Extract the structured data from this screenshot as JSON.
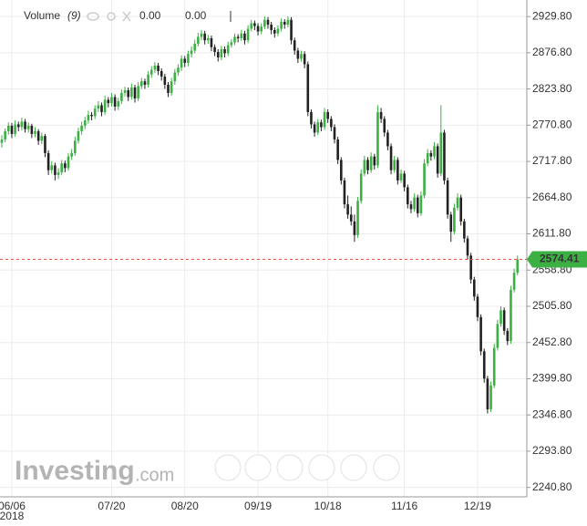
{
  "chart_data": {
    "type": "candlestick",
    "legend": {
      "label": "Volume",
      "param": "(9)",
      "values": [
        "0.00",
        "0.00"
      ],
      "colors": [
        "#e0524c",
        "#2f7fd6"
      ]
    },
    "watermark": [
      "Investing",
      ".com"
    ],
    "year_label": "2018",
    "up_color": "#3cb043",
    "down_color": "#222222",
    "grid": true,
    "ylim": [
      2227,
      2954
    ],
    "yticks": [
      {
        "value": 2240.8,
        "label": "2240.80"
      },
      {
        "value": 2293.8,
        "label": "2293.80"
      },
      {
        "value": 2346.8,
        "label": "2346.80"
      },
      {
        "value": 2399.8,
        "label": "2399.80"
      },
      {
        "value": 2452.8,
        "label": "2452.80"
      },
      {
        "value": 2505.8,
        "label": "2505.80"
      },
      {
        "value": 2558.8,
        "label": "2558.80"
      },
      {
        "value": 2611.8,
        "label": "2611.80"
      },
      {
        "value": 2664.8,
        "label": "2664.80"
      },
      {
        "value": 2717.8,
        "label": "2717.80"
      },
      {
        "value": 2770.8,
        "label": "2770.80"
      },
      {
        "value": 2823.8,
        "label": "2823.80"
      },
      {
        "value": 2876.8,
        "label": "2876.80"
      },
      {
        "value": 2929.8,
        "label": "2929.80"
      }
    ],
    "last_price": 2574.41,
    "last_price_color": "#3cb043",
    "categories": [
      null,
      null,
      null,
      "06/06",
      null,
      null,
      null,
      null,
      null,
      null,
      null,
      null,
      null,
      null,
      null,
      null,
      null,
      null,
      null,
      null,
      null,
      null,
      null,
      null,
      null,
      null,
      null,
      null,
      null,
      null,
      null,
      null,
      null,
      "07/20",
      null,
      null,
      null,
      null,
      null,
      null,
      null,
      null,
      null,
      null,
      null,
      null,
      null,
      null,
      null,
      null,
      null,
      null,
      null,
      null,
      null,
      "08/20",
      null,
      null,
      null,
      null,
      null,
      null,
      null,
      null,
      null,
      null,
      null,
      null,
      null,
      null,
      null,
      null,
      null,
      null,
      null,
      null,
      null,
      "09/19",
      null,
      null,
      null,
      null,
      null,
      null,
      null,
      null,
      null,
      null,
      null,
      null,
      null,
      null,
      null,
      null,
      null,
      null,
      null,
      null,
      "10/18",
      null,
      null,
      null,
      null,
      null,
      null,
      null,
      null,
      null,
      null,
      null,
      null,
      null,
      null,
      null,
      null,
      null,
      null,
      null,
      null,
      null,
      null,
      "11/16",
      null,
      null,
      null,
      null,
      null,
      null,
      null,
      null,
      null,
      null,
      null,
      null,
      null,
      null,
      null,
      null,
      null,
      null,
      null,
      null,
      null,
      "12/19",
      null,
      null,
      null,
      null,
      null,
      null,
      null,
      null,
      null,
      null,
      null,
      null
    ],
    "ohlc": [
      [
        2745,
        2756,
        2738,
        2750
      ],
      [
        2750,
        2766,
        2746,
        2762
      ],
      [
        2762,
        2775,
        2757,
        2770
      ],
      [
        2770,
        2774,
        2752,
        2758
      ],
      [
        2758,
        2778,
        2754,
        2772
      ],
      [
        2772,
        2776,
        2762,
        2768
      ],
      [
        2768,
        2782,
        2763,
        2776
      ],
      [
        2776,
        2780,
        2760,
        2765
      ],
      [
        2765,
        2775,
        2760,
        2770
      ],
      [
        2770,
        2773,
        2752,
        2758
      ],
      [
        2758,
        2768,
        2753,
        2762
      ],
      [
        2762,
        2765,
        2742,
        2748
      ],
      [
        2748,
        2760,
        2743,
        2755
      ],
      [
        2755,
        2758,
        2724,
        2730
      ],
      [
        2730,
        2734,
        2698,
        2705
      ],
      [
        2705,
        2718,
        2700,
        2712
      ],
      [
        2712,
        2716,
        2690,
        2698
      ],
      [
        2698,
        2708,
        2692,
        2702
      ],
      [
        2702,
        2720,
        2698,
        2715
      ],
      [
        2715,
        2719,
        2702,
        2708
      ],
      [
        2708,
        2730,
        2704,
        2725
      ],
      [
        2725,
        2736,
        2720,
        2730
      ],
      [
        2730,
        2754,
        2726,
        2748
      ],
      [
        2748,
        2767,
        2744,
        2762
      ],
      [
        2762,
        2776,
        2757,
        2770
      ],
      [
        2770,
        2783,
        2765,
        2778
      ],
      [
        2778,
        2792,
        2773,
        2786
      ],
      [
        2786,
        2790,
        2778,
        2784
      ],
      [
        2784,
        2800,
        2780,
        2795
      ],
      [
        2795,
        2806,
        2790,
        2800
      ],
      [
        2800,
        2804,
        2784,
        2790
      ],
      [
        2790,
        2814,
        2786,
        2808
      ],
      [
        2808,
        2812,
        2797,
        2803
      ],
      [
        2803,
        2818,
        2798,
        2812
      ],
      [
        2812,
        2816,
        2792,
        2798
      ],
      [
        2798,
        2811,
        2793,
        2806
      ],
      [
        2806,
        2823,
        2802,
        2818
      ],
      [
        2818,
        2827,
        2813,
        2822
      ],
      [
        2822,
        2826,
        2806,
        2812
      ],
      [
        2812,
        2832,
        2808,
        2826
      ],
      [
        2826,
        2830,
        2804,
        2810
      ],
      [
        2810,
        2834,
        2806,
        2828
      ],
      [
        2828,
        2840,
        2824,
        2835
      ],
      [
        2835,
        2839,
        2824,
        2830
      ],
      [
        2830,
        2850,
        2826,
        2845
      ],
      [
        2845,
        2857,
        2840,
        2852
      ],
      [
        2852,
        2863,
        2847,
        2858
      ],
      [
        2858,
        2862,
        2844,
        2850
      ],
      [
        2850,
        2854,
        2836,
        2842
      ],
      [
        2842,
        2846,
        2824,
        2830
      ],
      [
        2830,
        2834,
        2812,
        2818
      ],
      [
        2818,
        2840,
        2814,
        2835
      ],
      [
        2835,
        2853,
        2830,
        2848
      ],
      [
        2848,
        2860,
        2843,
        2855
      ],
      [
        2855,
        2873,
        2850,
        2868
      ],
      [
        2868,
        2872,
        2856,
        2862
      ],
      [
        2862,
        2880,
        2857,
        2875
      ],
      [
        2875,
        2886,
        2870,
        2880
      ],
      [
        2880,
        2896,
        2876,
        2890
      ],
      [
        2890,
        2906,
        2886,
        2900
      ],
      [
        2900,
        2910,
        2895,
        2905
      ],
      [
        2905,
        2909,
        2889,
        2895
      ],
      [
        2895,
        2903,
        2890,
        2898
      ],
      [
        2898,
        2902,
        2879,
        2885
      ],
      [
        2885,
        2889,
        2872,
        2878
      ],
      [
        2878,
        2882,
        2864,
        2870
      ],
      [
        2870,
        2887,
        2866,
        2882
      ],
      [
        2882,
        2886,
        2870,
        2876
      ],
      [
        2876,
        2893,
        2872,
        2888
      ],
      [
        2888,
        2897,
        2884,
        2892
      ],
      [
        2892,
        2905,
        2888,
        2900
      ],
      [
        2900,
        2904,
        2892,
        2898
      ],
      [
        2898,
        2910,
        2894,
        2905
      ],
      [
        2905,
        2909,
        2889,
        2895
      ],
      [
        2895,
        2917,
        2891,
        2912
      ],
      [
        2912,
        2925,
        2908,
        2920
      ],
      [
        2920,
        2924,
        2910,
        2916
      ],
      [
        2916,
        2920,
        2902,
        2908
      ],
      [
        2908,
        2920,
        2904,
        2915
      ],
      [
        2915,
        2930,
        2911,
        2925
      ],
      [
        2925,
        2929,
        2912,
        2918
      ],
      [
        2918,
        2922,
        2904,
        2910
      ],
      [
        2910,
        2914,
        2899,
        2905
      ],
      [
        2905,
        2917,
        2901,
        2912
      ],
      [
        2912,
        2927,
        2908,
        2922
      ],
      [
        2922,
        2926,
        2912,
        2918
      ],
      [
        2918,
        2930,
        2914,
        2925
      ],
      [
        2925,
        2929,
        2889,
        2895
      ],
      [
        2895,
        2899,
        2874,
        2880
      ],
      [
        2880,
        2884,
        2862,
        2868
      ],
      [
        2868,
        2880,
        2864,
        2875
      ],
      [
        2875,
        2879,
        2854,
        2860
      ],
      [
        2860,
        2864,
        2784,
        2790
      ],
      [
        2790,
        2794,
        2766,
        2772
      ],
      [
        2772,
        2776,
        2754,
        2760
      ],
      [
        2760,
        2780,
        2756,
        2775
      ],
      [
        2775,
        2779,
        2762,
        2768
      ],
      [
        2768,
        2796,
        2764,
        2790
      ],
      [
        2790,
        2794,
        2774,
        2780
      ],
      [
        2780,
        2784,
        2762,
        2768
      ],
      [
        2768,
        2772,
        2744,
        2750
      ],
      [
        2750,
        2754,
        2714,
        2720
      ],
      [
        2720,
        2724,
        2684,
        2690
      ],
      [
        2690,
        2694,
        2649,
        2655
      ],
      [
        2655,
        2668,
        2634,
        2640
      ],
      [
        2640,
        2652,
        2624,
        2630
      ],
      [
        2630,
        2640,
        2600,
        2610
      ],
      [
        2610,
        2666,
        2606,
        2660
      ],
      [
        2660,
        2706,
        2656,
        2700
      ],
      [
        2700,
        2726,
        2696,
        2720
      ],
      [
        2720,
        2724,
        2699,
        2705
      ],
      [
        2705,
        2731,
        2701,
        2725
      ],
      [
        2725,
        2729,
        2706,
        2712
      ],
      [
        2712,
        2800,
        2708,
        2790
      ],
      [
        2790,
        2796,
        2774,
        2780
      ],
      [
        2780,
        2784,
        2754,
        2760
      ],
      [
        2760,
        2764,
        2734,
        2740
      ],
      [
        2740,
        2744,
        2699,
        2705
      ],
      [
        2705,
        2726,
        2701,
        2720
      ],
      [
        2720,
        2724,
        2684,
        2690
      ],
      [
        2690,
        2706,
        2686,
        2700
      ],
      [
        2700,
        2704,
        2674,
        2680
      ],
      [
        2680,
        2684,
        2649,
        2655
      ],
      [
        2655,
        2660,
        2642,
        2648
      ],
      [
        2648,
        2671,
        2644,
        2665
      ],
      [
        2665,
        2669,
        2636,
        2642
      ],
      [
        2642,
        2674,
        2638,
        2668
      ],
      [
        2668,
        2721,
        2664,
        2715
      ],
      [
        2715,
        2736,
        2711,
        2730
      ],
      [
        2730,
        2734,
        2719,
        2725
      ],
      [
        2725,
        2746,
        2721,
        2740
      ],
      [
        2740,
        2744,
        2694,
        2700
      ],
      [
        2700,
        2800,
        2696,
        2760
      ],
      [
        2760,
        2764,
        2684,
        2690
      ],
      [
        2690,
        2694,
        2634,
        2640
      ],
      [
        2640,
        2644,
        2600,
        2615
      ],
      [
        2615,
        2656,
        2611,
        2650
      ],
      [
        2650,
        2671,
        2646,
        2665
      ],
      [
        2665,
        2669,
        2624,
        2630
      ],
      [
        2630,
        2634,
        2599,
        2605
      ],
      [
        2605,
        2609,
        2574,
        2580
      ],
      [
        2580,
        2584,
        2539,
        2545
      ],
      [
        2545,
        2549,
        2514,
        2520
      ],
      [
        2520,
        2524,
        2484,
        2490
      ],
      [
        2490,
        2494,
        2434,
        2440
      ],
      [
        2440,
        2444,
        2394,
        2400
      ],
      [
        2400,
        2404,
        2349,
        2355
      ],
      [
        2355,
        2396,
        2351,
        2390
      ],
      [
        2390,
        2451,
        2386,
        2445
      ],
      [
        2445,
        2486,
        2441,
        2480
      ],
      [
        2480,
        2506,
        2476,
        2500
      ],
      [
        2500,
        2504,
        2464,
        2470
      ],
      [
        2470,
        2474,
        2449,
        2455
      ],
      [
        2455,
        2536,
        2451,
        2530
      ],
      [
        2530,
        2561,
        2526,
        2555
      ],
      [
        2555,
        2580,
        2551,
        2574.41
      ]
    ]
  }
}
